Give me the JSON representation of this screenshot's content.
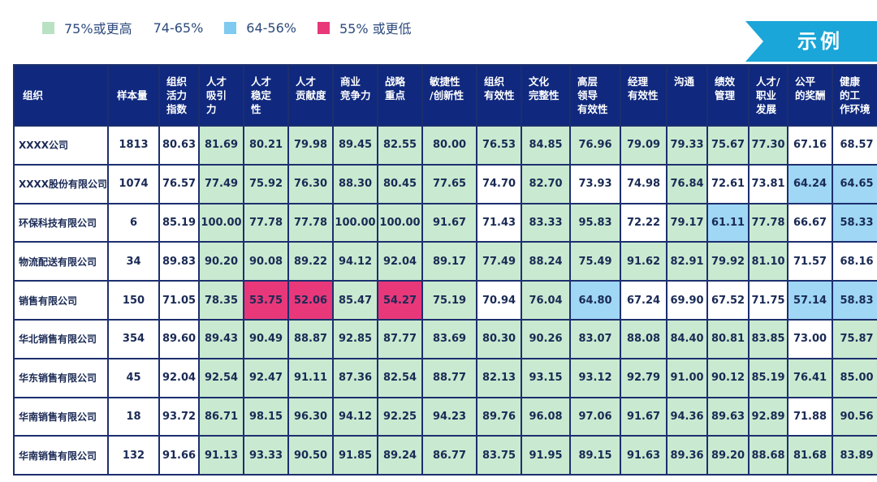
{
  "legend": [
    {
      "label": "75%或更高",
      "color": "#b8e2c3"
    },
    {
      "label": "74-65%",
      "color": "#ffffff"
    },
    {
      "label": "64-56%",
      "color": "#7fcaf0"
    },
    {
      "label": "55% 或更低",
      "color": "#e8387a"
    }
  ],
  "example_label": "示例",
  "chart_data": {
    "type": "table",
    "columns": [
      "组织",
      "样本量",
      "组织活力指数",
      "人才吸引力",
      "人才稳定性",
      "人才贡献度",
      "商业竞争力",
      "战略重点",
      "敏捷性/创新性",
      "组织有效性",
      "文化完整性",
      "高层领导有效性",
      "经理有效性",
      "沟通",
      "绩效管理",
      "人才/职业发展",
      "公平的奖酬",
      "健康的工作环境"
    ],
    "header_lines": [
      [
        "组织"
      ],
      [
        "样本量"
      ],
      [
        "组织",
        "活力",
        "指数"
      ],
      [
        "人才",
        "吸引",
        "力"
      ],
      [
        "人才",
        "稳定",
        "性"
      ],
      [
        "人才",
        "贡献度"
      ],
      [
        "商业",
        "竞争力"
      ],
      [
        "战略",
        "重点"
      ],
      [
        "敏捷性",
        "/创新性"
      ],
      [
        "组织",
        "有效性"
      ],
      [
        "文化",
        "完整性"
      ],
      [
        "高层",
        "领导",
        "有效性"
      ],
      [
        "经理",
        "有效性"
      ],
      [
        "沟通"
      ],
      [
        "绩效",
        "管理"
      ],
      [
        "人才/",
        "职业",
        "发展"
      ],
      [
        "公平",
        "的奖酬"
      ],
      [
        "健康",
        "的工",
        "作环境"
      ]
    ],
    "rows": [
      {
        "org": "XXXX公司",
        "n": "1813",
        "values": [
          "80.63",
          "81.69",
          "80.21",
          "79.98",
          "89.45",
          "82.55",
          "80.00",
          "76.53",
          "84.85",
          "76.96",
          "79.09",
          "79.33",
          "75.67",
          "77.30",
          "67.16",
          "68.57"
        ]
      },
      {
        "org": "XXXX股份有限公司",
        "n": "1074",
        "values": [
          "76.57",
          "77.49",
          "75.92",
          "76.30",
          "88.30",
          "80.45",
          "77.65",
          "74.70",
          "82.70",
          "73.93",
          "74.98",
          "76.84",
          "72.61",
          "73.81",
          "64.24",
          "64.65"
        ]
      },
      {
        "org": "环保科技有限公司",
        "n": "6",
        "values": [
          "85.19",
          "100.00",
          "77.78",
          "77.78",
          "100.00",
          "100.00",
          "91.67",
          "71.43",
          "83.33",
          "95.83",
          "72.22",
          "79.17",
          "61.11",
          "77.78",
          "66.67",
          "58.33"
        ]
      },
      {
        "org": "物流配送有限公司",
        "n": "34",
        "values": [
          "89.83",
          "90.20",
          "90.08",
          "89.22",
          "94.12",
          "92.04",
          "89.17",
          "77.49",
          "88.24",
          "75.49",
          "91.62",
          "82.91",
          "79.92",
          "81.10",
          "71.57",
          "68.16"
        ]
      },
      {
        "org": "销售有限公司",
        "n": "150",
        "values": [
          "71.05",
          "78.35",
          "53.75",
          "52.06",
          "85.47",
          "54.27",
          "75.19",
          "70.94",
          "76.04",
          "64.80",
          "67.24",
          "69.90",
          "67.52",
          "71.75",
          "57.14",
          "58.83"
        ]
      },
      {
        "org": "华北销售有限公司",
        "n": "354",
        "values": [
          "89.60",
          "89.43",
          "90.49",
          "88.87",
          "92.85",
          "87.77",
          "83.69",
          "80.30",
          "90.26",
          "83.07",
          "88.08",
          "84.40",
          "80.81",
          "83.85",
          "73.00",
          "75.87"
        ]
      },
      {
        "org": "华东销售有限公司",
        "n": "45",
        "values": [
          "92.04",
          "92.54",
          "92.47",
          "91.11",
          "87.36",
          "82.54",
          "88.77",
          "82.13",
          "93.15",
          "93.12",
          "92.79",
          "91.00",
          "90.12",
          "85.19",
          "76.41",
          "85.00"
        ]
      },
      {
        "org": "华南销售有限公司",
        "n": "18",
        "values": [
          "93.72",
          "86.71",
          "98.15",
          "96.30",
          "94.12",
          "92.25",
          "94.23",
          "89.76",
          "96.08",
          "97.06",
          "91.67",
          "94.36",
          "89.63",
          "92.89",
          "71.88",
          "90.56"
        ]
      },
      {
        "org": "华南销售有限公司",
        "n": "132",
        "values": [
          "91.66",
          "91.13",
          "93.33",
          "90.50",
          "91.85",
          "89.24",
          "86.77",
          "83.75",
          "91.95",
          "89.15",
          "91.63",
          "89.36",
          "89.20",
          "88.68",
          "81.68",
          "83.89"
        ]
      }
    ],
    "color_scale": [
      {
        "min": 75,
        "color": "green"
      },
      {
        "min": 65,
        "color": "white"
      },
      {
        "min": 56,
        "color": "blue"
      },
      {
        "min": 0,
        "color": "pink"
      }
    ],
    "uncolored_columns": [
      "组织活力指数"
    ]
  }
}
